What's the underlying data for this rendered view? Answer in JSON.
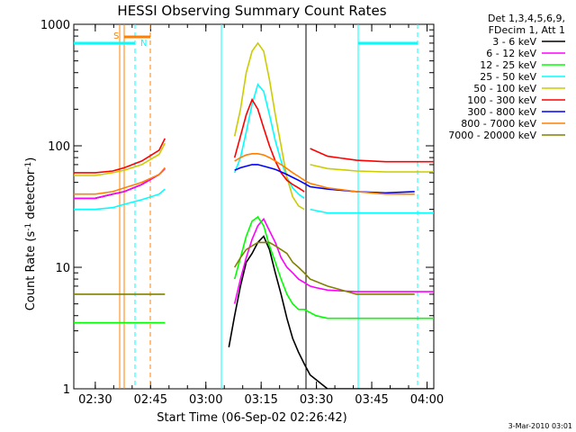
{
  "chart_data": {
    "type": "line",
    "title": "HESSI Observing Summary Count Rates",
    "xlabel": "Start Time (06-Sep-02 02:26:42)",
    "ylabel_main": "Count Rate (s",
    "ylabel_exp1": "-1",
    "ylabel_mid": " detector",
    "ylabel_exp2": "-1",
    "ylabel_close": ")",
    "y_scale": "log",
    "ylim": [
      1,
      1000
    ],
    "xlim_minutes": [
      -3.7,
      58.3
    ],
    "x_ticks": [
      {
        "m": 0,
        "label": "02:30"
      },
      {
        "m": 15,
        "label": "02:45"
      },
      {
        "m": 30,
        "label": "03:00"
      },
      {
        "m": 45,
        "label": "03:15"
      },
      {
        "m": 60,
        "label": "03:30"
      },
      {
        "m": 75,
        "label": "03:45"
      },
      {
        "m": 90,
        "label": "04:00"
      }
    ],
    "y_ticks": [
      {
        "v": 1,
        "label": "1"
      },
      {
        "v": 10,
        "label": "10"
      },
      {
        "v": 100,
        "label": "100"
      },
      {
        "v": 1000,
        "label": "1000"
      }
    ],
    "legend_header": [
      "Det 1,3,4,5,6,9,",
      "FDecim 1, Att 1"
    ],
    "series": [
      {
        "name": "3 - 6 keV",
        "color": "#000000",
        "x": [
          -3.7,
          0,
          3,
          5,
          8,
          11,
          12,
          13.5,
          14,
          15,
          16,
          18,
          20,
          21,
          22,
          23,
          24,
          25,
          26,
          27,
          28,
          29,
          30,
          31,
          32,
          33,
          34,
          35,
          36,
          37,
          40,
          45,
          50,
          55,
          60,
          61,
          62,
          63,
          65,
          67,
          70,
          72,
          73,
          74,
          75,
          76,
          77,
          78,
          79,
          80,
          82,
          84,
          86,
          88,
          90,
          92
        ],
        "y": [
          37,
          37,
          40,
          42,
          48,
          58,
          65,
          null,
          null,
          null,
          null,
          null,
          null,
          null,
          null,
          2.2,
          4,
          7,
          11,
          13,
          16,
          18,
          14,
          9,
          6,
          3.8,
          2.6,
          2,
          1.6,
          1.3,
          1,
          1,
          1,
          1,
          1,
          null,
          null,
          null,
          null,
          null,
          null,
          null,
          2.5,
          3,
          3.5,
          4,
          4.5,
          5,
          4.5,
          3.8,
          3,
          2.3,
          1.9,
          1.6,
          1.4,
          1.2
        ]
      },
      {
        "name": "6 - 12 keV",
        "color": "#ff00ff",
        "x": [
          -3.7,
          0,
          3,
          5,
          8,
          11,
          12,
          13.5,
          14,
          20,
          21,
          22,
          23,
          24,
          25,
          26,
          27,
          28,
          29,
          30,
          31,
          32,
          33,
          34,
          35,
          36,
          37,
          38,
          40,
          45,
          50,
          55,
          60,
          61,
          62,
          63,
          65,
          67,
          70,
          72,
          73,
          74,
          75,
          76,
          77,
          78,
          79,
          80,
          82,
          84,
          86,
          88,
          90,
          92
        ],
        "y": [
          37,
          37,
          40,
          42,
          48,
          58,
          65,
          null,
          null,
          null,
          null,
          null,
          null,
          5,
          8,
          12,
          17,
          22,
          25,
          20,
          16,
          12,
          10,
          9,
          8,
          7.5,
          7,
          6.8,
          6.5,
          6.3,
          6.3,
          6.3,
          6.3,
          null,
          null,
          null,
          null,
          null,
          null,
          null,
          6.5,
          7.5,
          9,
          12,
          15,
          17,
          15,
          12,
          9,
          8,
          7,
          6.5,
          6,
          5.5
        ]
      },
      {
        "name": "12 - 25 keV",
        "color": "#00ff00",
        "x": [
          -3.7,
          0,
          3,
          5,
          8,
          11,
          12,
          13.5,
          14,
          20,
          21,
          22,
          23,
          24,
          25,
          26,
          27,
          28,
          29,
          30,
          31,
          32,
          33,
          34,
          35,
          36,
          38,
          40,
          45,
          50,
          55,
          60,
          61,
          62,
          63,
          65,
          67,
          70,
          72,
          73,
          74,
          75,
          76,
          77,
          78,
          79,
          80,
          82,
          84,
          86,
          88,
          90,
          92
        ],
        "y": [
          3.5,
          3.5,
          3.5,
          3.5,
          3.5,
          3.5,
          3.5,
          null,
          null,
          null,
          null,
          null,
          null,
          8,
          12,
          18,
          24,
          26,
          22,
          15,
          11,
          8,
          6,
          5,
          4.5,
          4.5,
          4,
          3.8,
          3.8,
          3.8,
          3.8,
          3.8,
          null,
          null,
          null,
          null,
          null,
          null,
          null,
          4,
          4,
          4.5,
          5,
          7,
          12,
          10,
          6,
          4,
          3.5,
          3.5,
          3,
          3,
          3
        ]
      },
      {
        "name": "25 - 50 keV",
        "color": "#00ffff",
        "x": [
          -3.7,
          0,
          3,
          5,
          8,
          11,
          12,
          13.5,
          14,
          20,
          21,
          22,
          23,
          24,
          25,
          26,
          27,
          28,
          29,
          30,
          31,
          32,
          33,
          34,
          35,
          36,
          36.5,
          37,
          40,
          45,
          50,
          55,
          60,
          61,
          62,
          63,
          65,
          67,
          70,
          72,
          73,
          74,
          75,
          76,
          77,
          78,
          79,
          80,
          82,
          84,
          86,
          88,
          90,
          92
        ],
        "y": [
          30,
          30,
          31,
          33,
          36,
          40,
          44,
          null,
          null,
          null,
          null,
          null,
          null,
          60,
          80,
          130,
          220,
          320,
          280,
          180,
          110,
          75,
          55,
          45,
          40,
          37,
          null,
          30,
          28,
          28,
          28,
          28,
          28,
          null,
          null,
          null,
          null,
          null,
          null,
          null,
          30,
          40,
          70,
          110,
          80,
          45,
          30,
          25,
          18,
          14,
          12,
          11,
          30,
          28
        ]
      },
      {
        "name": "50 - 100 keV",
        "color": "#cccc00",
        "x": [
          -3.7,
          0,
          3,
          5,
          8,
          11,
          12,
          13.5,
          14,
          20,
          21,
          22,
          23,
          24,
          25,
          26,
          27,
          28,
          29,
          30,
          31,
          32,
          33,
          34,
          35,
          36,
          36.5,
          37,
          40,
          45,
          50,
          55,
          60,
          61,
          62,
          63,
          65,
          67,
          70,
          72,
          73,
          74,
          75,
          76,
          77,
          78,
          79,
          80,
          82,
          84,
          86,
          88,
          90,
          92
        ],
        "y": [
          57,
          57,
          60,
          63,
          70,
          85,
          105,
          null,
          null,
          null,
          null,
          null,
          null,
          120,
          200,
          400,
          600,
          700,
          600,
          350,
          180,
          100,
          55,
          38,
          32,
          30,
          null,
          70,
          65,
          62,
          61,
          61,
          61,
          null,
          null,
          null,
          null,
          null,
          null,
          null,
          28,
          33,
          45,
          80,
          110,
          75,
          45,
          30,
          25,
          22,
          20,
          19,
          17,
          58
        ]
      },
      {
        "name": "100 - 300 keV",
        "color": "#ff0000",
        "x": [
          -3.7,
          0,
          3,
          5,
          8,
          11,
          12,
          13.5,
          14,
          20,
          21,
          22,
          23,
          24,
          25,
          26,
          27,
          28,
          29,
          30,
          31,
          32,
          33,
          34,
          35,
          36,
          36.5,
          37,
          40,
          45,
          50,
          55,
          60,
          61,
          62,
          63,
          65,
          67,
          70,
          72,
          73,
          74,
          75,
          76,
          77,
          78,
          79,
          80,
          82,
          84,
          86,
          88,
          90,
          92
        ],
        "y": [
          60,
          60,
          62,
          66,
          75,
          92,
          115,
          null,
          null,
          null,
          null,
          null,
          null,
          80,
          120,
          180,
          240,
          200,
          140,
          100,
          75,
          60,
          52,
          48,
          45,
          42,
          null,
          95,
          82,
          76,
          74,
          74,
          74,
          null,
          null,
          null,
          null,
          null,
          null,
          null,
          42,
          48,
          60,
          70,
          75,
          72,
          60,
          48,
          40,
          36,
          33,
          32,
          60,
          58
        ]
      },
      {
        "name": "300 - 800 keV",
        "color": "#0000ff",
        "x": [
          -3.7,
          0,
          3,
          5,
          8,
          11,
          12,
          13.5,
          14,
          20,
          21,
          22,
          23,
          24,
          25,
          26,
          27,
          28,
          29,
          30,
          31,
          32,
          33,
          34,
          35,
          36,
          37,
          40,
          45,
          50,
          55,
          60,
          61,
          62,
          63,
          65,
          67,
          70,
          72,
          73,
          74,
          75,
          76,
          77,
          78,
          79,
          80,
          82,
          84,
          86,
          88,
          90,
          92
        ],
        "y": [
          null,
          null,
          null,
          null,
          null,
          null,
          null,
          null,
          null,
          null,
          null,
          null,
          null,
          63,
          66,
          68,
          70,
          70,
          68,
          66,
          64,
          61,
          58,
          55,
          52,
          49,
          46,
          44,
          42,
          41,
          42,
          null,
          null,
          null,
          null,
          null,
          null,
          null,
          55,
          60,
          64,
          67,
          68,
          66,
          62,
          56,
          50,
          45,
          41,
          38,
          36,
          35,
          34
        ]
      },
      {
        "name": "800 - 7000 keV",
        "color": "#ff8000",
        "x": [
          -3.7,
          0,
          3,
          5,
          8,
          11,
          12,
          13.5,
          14,
          20,
          21,
          22,
          23,
          24,
          25,
          26,
          27,
          28,
          29,
          30,
          31,
          32,
          33,
          34,
          35,
          36,
          37,
          40,
          45,
          50,
          55,
          60,
          61,
          62,
          63,
          65,
          67,
          70,
          72,
          73,
          74,
          75,
          76,
          77,
          78,
          79,
          80,
          82,
          84,
          86,
          88,
          90,
          92
        ],
        "y": [
          40,
          40,
          42,
          45,
          50,
          58,
          66,
          null,
          null,
          null,
          null,
          null,
          null,
          75,
          80,
          84,
          86,
          86,
          84,
          80,
          75,
          70,
          65,
          60,
          56,
          52,
          49,
          45,
          42,
          40,
          40,
          null,
          null,
          null,
          null,
          null,
          null,
          null,
          52,
          58,
          66,
          72,
          80,
          82,
          80,
          74,
          66,
          56,
          48,
          42,
          38,
          36,
          34
        ]
      },
      {
        "name": "7000 - 20000 keV",
        "color": "#808000",
        "x": [
          -3.7,
          0,
          3,
          5,
          8,
          11,
          12,
          13.5,
          14,
          20,
          21,
          22,
          23,
          24,
          25,
          26,
          27,
          28,
          29,
          30,
          31,
          32,
          33,
          34,
          35,
          36,
          37,
          40,
          45,
          50,
          55,
          60,
          61,
          62,
          63,
          65,
          67,
          70,
          72,
          73,
          74,
          75,
          76,
          77,
          78,
          79,
          80,
          82,
          84,
          86,
          88,
          90,
          92
        ],
        "y": [
          6,
          6,
          6,
          6,
          6,
          6,
          6,
          null,
          null,
          null,
          null,
          null,
          null,
          10,
          12,
          14,
          15,
          16,
          16,
          16,
          15,
          14,
          13,
          11,
          10,
          9,
          8,
          7,
          6,
          6,
          6,
          null,
          null,
          null,
          null,
          null,
          null,
          null,
          9,
          10,
          12,
          14,
          15,
          15,
          14,
          13,
          11,
          10,
          9,
          8,
          7,
          6,
          6
        ]
      }
    ],
    "annotations": {
      "s_label": "S",
      "n_label": "N",
      "footer_stamp": "3-Mar-2010 03:01"
    }
  }
}
